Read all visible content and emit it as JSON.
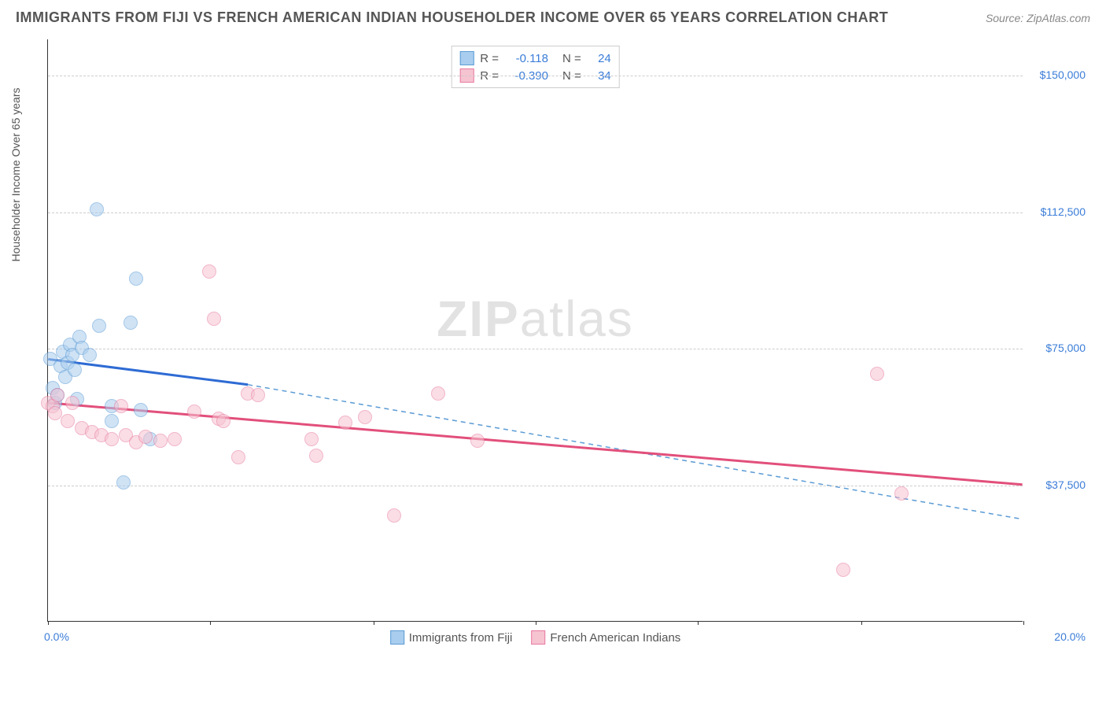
{
  "title": "IMMIGRANTS FROM FIJI VS FRENCH AMERICAN INDIAN HOUSEHOLDER INCOME OVER 65 YEARS CORRELATION CHART",
  "source": "Source: ZipAtlas.com",
  "ylabel": "Householder Income Over 65 years",
  "watermark_a": "ZIP",
  "watermark_b": "atlas",
  "chart": {
    "type": "scatter",
    "xlim": [
      0,
      20
    ],
    "ylim": [
      0,
      160000
    ],
    "x_min_label": "0.0%",
    "x_max_label": "20.0%",
    "y_ticks": [
      37500,
      75000,
      112500,
      150000
    ],
    "y_tick_labels": [
      "$37,500",
      "$75,000",
      "$112,500",
      "$150,000"
    ],
    "x_tick_positions": [
      0,
      3.33,
      6.67,
      10,
      13.33,
      16.67,
      20
    ],
    "grid_color": "#cccccc",
    "background_color": "#ffffff",
    "series": [
      {
        "name": "Immigrants from Fiji",
        "fill": "#a9cdee",
        "stroke": "#5b9bd5",
        "fill_opacity": 0.55,
        "r_label": "R =",
        "r_value": "-0.118",
        "n_label": "N =",
        "n_value": "24",
        "marker_radius": 9,
        "trend_solid": {
          "x1": 0,
          "y1": 72000,
          "x2": 4.1,
          "y2": 65000,
          "color": "#2e6bd4",
          "width": 3
        },
        "trend_dash": {
          "x1": 4.1,
          "y1": 65000,
          "x2": 20,
          "y2": 28000,
          "color": "#5b9bd5",
          "width": 1.5
        },
        "points": [
          [
            0.05,
            72000
          ],
          [
            0.1,
            64000
          ],
          [
            0.15,
            60000
          ],
          [
            0.2,
            62000
          ],
          [
            0.25,
            70000
          ],
          [
            0.3,
            74000
          ],
          [
            0.35,
            67000
          ],
          [
            0.4,
            71000
          ],
          [
            0.45,
            76000
          ],
          [
            0.5,
            73000
          ],
          [
            0.55,
            69000
          ],
          [
            0.6,
            61000
          ],
          [
            0.65,
            78000
          ],
          [
            0.7,
            75000
          ],
          [
            0.85,
            73000
          ],
          [
            1.0,
            113000
          ],
          [
            1.05,
            81000
          ],
          [
            1.3,
            59000
          ],
          [
            1.3,
            55000
          ],
          [
            1.55,
            38000
          ],
          [
            1.7,
            82000
          ],
          [
            1.8,
            94000
          ],
          [
            2.1,
            50000
          ],
          [
            1.9,
            58000
          ]
        ]
      },
      {
        "name": "French American Indians",
        "fill": "#f6c3d1",
        "stroke": "#e87ba0",
        "fill_opacity": 0.55,
        "r_label": "R =",
        "r_value": "-0.390",
        "n_label": "N =",
        "n_value": "34",
        "marker_radius": 9,
        "trend_solid": {
          "x1": 0,
          "y1": 60000,
          "x2": 20,
          "y2": 37500,
          "color": "#e24f7b",
          "width": 3
        },
        "trend_dash": null,
        "points": [
          [
            0.0,
            60000
          ],
          [
            0.1,
            59000
          ],
          [
            0.15,
            57000
          ],
          [
            0.2,
            62000
          ],
          [
            0.4,
            55000
          ],
          [
            0.5,
            60000
          ],
          [
            0.7,
            53000
          ],
          [
            0.9,
            52000
          ],
          [
            1.1,
            51000
          ],
          [
            1.3,
            50000
          ],
          [
            1.5,
            59000
          ],
          [
            1.6,
            51000
          ],
          [
            1.8,
            49000
          ],
          [
            2.0,
            50500
          ],
          [
            2.3,
            49500
          ],
          [
            2.6,
            50000
          ],
          [
            3.0,
            57500
          ],
          [
            3.3,
            96000
          ],
          [
            3.4,
            83000
          ],
          [
            3.5,
            55500
          ],
          [
            3.6,
            55000
          ],
          [
            3.9,
            45000
          ],
          [
            4.1,
            62500
          ],
          [
            4.3,
            62000
          ],
          [
            5.4,
            50000
          ],
          [
            5.5,
            45500
          ],
          [
            6.1,
            54500
          ],
          [
            6.5,
            56000
          ],
          [
            7.1,
            29000
          ],
          [
            8.0,
            62500
          ],
          [
            8.8,
            49500
          ],
          [
            17.0,
            68000
          ],
          [
            17.5,
            35000
          ],
          [
            16.3,
            14000
          ]
        ]
      }
    ]
  }
}
